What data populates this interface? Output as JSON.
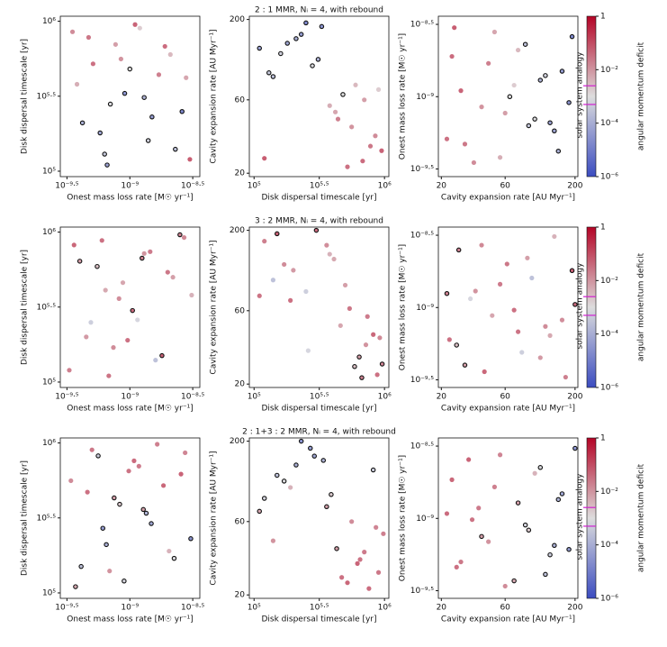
{
  "axes": {
    "log": true,
    "mass_loss": {
      "label": "Onest mass loss rate [M☉ yr⁻¹]",
      "lim": [
        2.8e-10,
        3.6e-09
      ],
      "ticks": [
        {
          "value": 3.162e-10,
          "label": "10⁻⁹·⁵"
        },
        {
          "value": 1e-09,
          "label": "10⁻⁹"
        },
        {
          "value": 3.162e-09,
          "label": "10⁻⁸·⁵"
        }
      ]
    },
    "timescale": {
      "label": "Disk dispersal timescale [yr]",
      "lim": [
        92000,
        1080000
      ],
      "ticks": [
        {
          "value": 100000,
          "label": "10⁵"
        },
        {
          "value": 316228,
          "label": "10⁵·⁵"
        },
        {
          "value": 1000000,
          "label": "10⁶"
        }
      ]
    },
    "cavity": {
      "label": "Cavity expansion rate [AU Myr⁻¹]",
      "lim": [
        19,
        210
      ],
      "ticks": [
        20,
        60,
        200
      ]
    }
  },
  "colorbar": {
    "label": "angular momentum deficit",
    "annotation": "solar system analogy",
    "lim": [
      1e-06,
      1
    ],
    "ticks": [
      {
        "value": 1e-06,
        "label": "10⁻⁶"
      },
      {
        "value": 0.0001,
        "label": "10⁻⁴"
      },
      {
        "value": 0.01,
        "label": "10⁻²"
      },
      1
    ],
    "analogy_range": [
      0.0005,
      0.0025
    ],
    "analogy_color": "#d020d0",
    "cmap": [
      "#3b4cc0",
      "#dddddd",
      "#b40426"
    ]
  },
  "chart_data": [
    {
      "type": "scatter",
      "title": "2 : 1 MMR, Nᵢ = 4, with rebound",
      "mass_loss": [
        3.5e-10,
        4.2e-10,
        5.1e-10,
        6.3e-10,
        7.7e-10,
        9.1e-10,
        1.1e-09,
        1.4e-09,
        1.7e-09,
        2.1e-09,
        2.6e-09,
        3e-09,
        3.8e-10,
        4.7e-10,
        5.8e-10,
        7e-10,
        8.5e-10,
        1.2e-09,
        1.5e-09,
        1.9e-09,
        2.3e-09,
        2.8e-09,
        6.6e-10,
        1e-09,
        1.3e-09
      ],
      "timescale": [
        850000,
        210000,
        520000,
        130000,
        700000,
        330000,
        950000,
        160000,
        440000,
        600000,
        250000,
        120000,
        380000,
        780000,
        180000,
        280000,
        560000,
        900000,
        230000,
        680000,
        140000,
        420000,
        110000,
        480000,
        310000
      ],
      "cavity": [
        35,
        150,
        22,
        90,
        60,
        180,
        28,
        120,
        45,
        75,
        190,
        25,
        55,
        30,
        140,
        100,
        40,
        70,
        160,
        24,
        85,
        50,
        130,
        65,
        110
      ],
      "amd": [
        0.02,
        8e-05,
        0.05,
        0.0003,
        0.01,
        2e-05,
        0.08,
        0.0005,
        0.03,
        0.004,
        1e-05,
        0.1,
        0.006,
        0.04,
        5e-05,
        0.0008,
        0.015,
        0.002,
        3e-05,
        0.06,
        0.0002,
        0.008,
        4e-05,
        0.001,
        0.0001
      ],
      "outlined": [
        false,
        true,
        false,
        true,
        false,
        true,
        false,
        true,
        false,
        false,
        true,
        false,
        false,
        false,
        true,
        true,
        false,
        false,
        true,
        false,
        true,
        false,
        true,
        true,
        true
      ]
    },
    {
      "type": "scatter",
      "title": "3 : 2 MMR, Nᵢ = 4, with rebound",
      "mass_loss": [
        3.3e-10,
        4e-10,
        4.9e-10,
        6e-10,
        7.4e-10,
        8.8e-10,
        1.05e-09,
        1.3e-09,
        1.6e-09,
        2e-09,
        2.5e-09,
        3.1e-09,
        3.6e-10,
        4.5e-10,
        5.5e-10,
        6.8e-10,
        8.2e-10,
        1.15e-09,
        1.45e-09,
        1.8e-09,
        2.2e-09,
        2.7e-09,
        6.4e-10,
        9.6e-10,
        1.25e-09
      ],
      "timescale": [
        120000,
        640000,
        250000,
        880000,
        170000,
        460000,
        300000,
        720000,
        140000,
        540000,
        960000,
        380000,
        820000,
        200000,
        590000,
        110000,
        360000,
        260000,
        740000,
        150000,
        500000,
        920000,
        410000,
        190000,
        670000
      ],
      "cavity": [
        170,
        30,
        80,
        23,
        120,
        48,
        200,
        36,
        95,
        62,
        27,
        140,
        42,
        110,
        26,
        75,
        160,
        33,
        55,
        190,
        88,
        40,
        130,
        70,
        22
      ],
      "amd": [
        0.03,
        0.01,
        0.0004,
        0.05,
        0.02,
        0.008,
        0.06,
        0.015,
        0.0002,
        0.04,
        0.025,
        0.005,
        0.07,
        0.012,
        0.003,
        0.045,
        0.018,
        0.0006,
        0.035,
        0.09,
        0.01,
        0.022,
        0.007,
        0.05,
        0.028
      ],
      "outlined": [
        false,
        true,
        false,
        false,
        false,
        false,
        true,
        false,
        false,
        false,
        true,
        false,
        false,
        false,
        true,
        false,
        false,
        false,
        false,
        true,
        false,
        false,
        false,
        false,
        true
      ]
    },
    {
      "type": "scatter",
      "title": "2 : 1+3 : 2 MMR, Nᵢ = 4, with rebound",
      "mass_loss": [
        3.4e-10,
        4.1e-10,
        5e-10,
        6.1e-10,
        7.5e-10,
        9e-10,
        1.08e-09,
        1.35e-09,
        1.65e-09,
        2.05e-09,
        2.55e-09,
        3.05e-09,
        3.7e-10,
        4.6e-10,
        5.6e-10,
        6.9e-10,
        8.3e-10,
        1.18e-09,
        1.48e-09,
        1.85e-09,
        2.25e-09,
        2.75e-09,
        6.5e-10,
        9.8e-10,
        1.28e-09
      ],
      "timescale": [
        560000,
        150000,
        900000,
        270000,
        430000,
        120000,
        760000,
        340000,
        980000,
        190000,
        620000,
        230000,
        110000,
        470000,
        820000,
        140000,
        390000,
        700000,
        290000,
        520000,
        170000,
        860000,
        210000,
        650000,
        360000
      ],
      "cavity": [
        60,
        120,
        28,
        180,
        40,
        85,
        22,
        150,
        50,
        100,
        32,
        200,
        70,
        26,
        130,
        45,
        90,
        38,
        160,
        24,
        110,
        55,
        140,
        34,
        75
      ],
      "amd": [
        0.02,
        0.0002,
        0.04,
        3e-05,
        0.01,
        0.0006,
        0.06,
        0.0001,
        0.03,
        0.005,
        0.08,
        2e-05,
        0.007,
        0.05,
        0.0004,
        0.015,
        0.002,
        0.035,
        5e-05,
        0.07,
        0.0008,
        0.025,
        8e-05,
        0.045,
        0.009
      ],
      "outlined": [
        false,
        true,
        false,
        true,
        true,
        true,
        false,
        true,
        false,
        false,
        false,
        true,
        true,
        false,
        true,
        false,
        true,
        false,
        true,
        false,
        true,
        false,
        true,
        false,
        true
      ]
    }
  ]
}
